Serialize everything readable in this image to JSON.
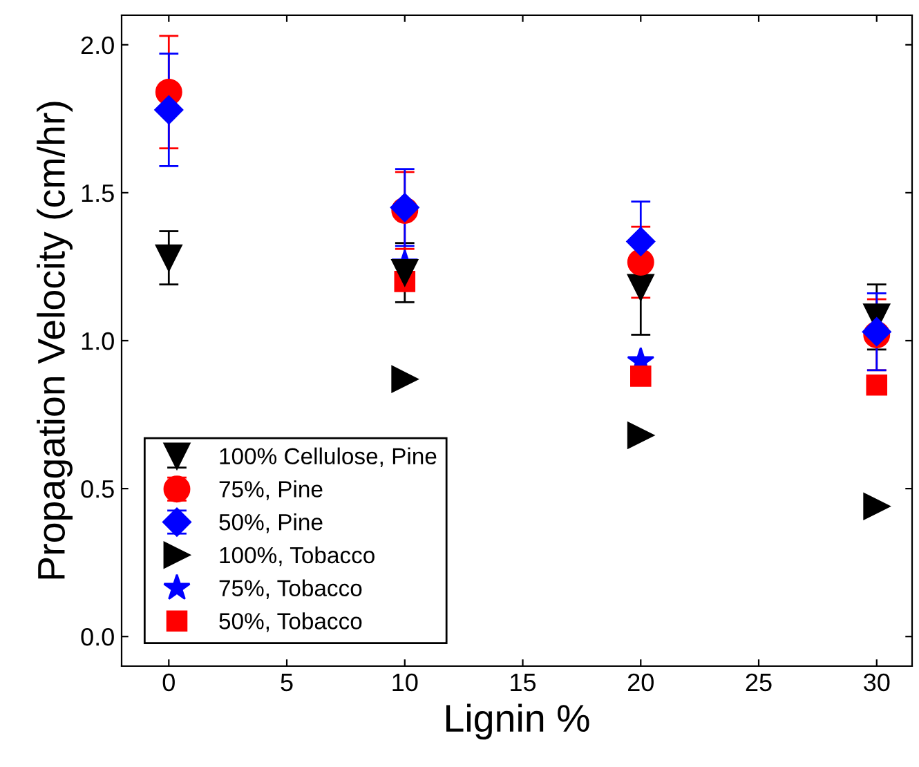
{
  "chart_data": {
    "type": "scatter",
    "xlabel": "Lignin %",
    "ylabel": "Propagation Velocity (cm/hr)",
    "x": [
      0,
      10,
      20,
      30
    ],
    "xlim": [
      -2,
      31.5
    ],
    "ylim": [
      -0.1,
      2.1
    ],
    "xticks": [
      0,
      5,
      10,
      15,
      20,
      25,
      30
    ],
    "yticks": [
      {
        "value": 0,
        "label": "0.0"
      },
      {
        "value": 0.5,
        "label": "0.5"
      },
      {
        "value": 1,
        "label": "1.0"
      },
      {
        "value": 1.5,
        "label": "1.5"
      },
      {
        "value": 2,
        "label": "2.0"
      }
    ],
    "grid": false,
    "legend": "bottom left",
    "series": [
      {
        "name": "100% Cellulose, Pine",
        "color": "#000000",
        "marker": "triangle_down",
        "values": [
          1.28,
          1.23,
          1.18,
          1.08
        ],
        "errors": [
          0.09,
          0.1,
          0.16,
          0.11
        ]
      },
      {
        "name": "75%, Pine",
        "color": "#ff0000",
        "marker": "circle",
        "values": [
          1.84,
          1.44,
          1.265,
          1.02
        ],
        "errors": [
          0.19,
          0.13,
          0.12,
          0.12
        ]
      },
      {
        "name": "50%, Pine",
        "color": "#0000ff",
        "marker": "diamond",
        "values": [
          1.78,
          1.45,
          1.335,
          1.03
        ],
        "errors": [
          0.19,
          0.13,
          0.135,
          0.13
        ]
      },
      {
        "name": "100%, Tobacco",
        "color": "#000000",
        "marker": "triangle_right",
        "values": [
          null,
          0.87,
          0.68,
          0.44
        ]
      },
      {
        "name": "75%, Tobacco",
        "color": "#0000ff",
        "marker": "star",
        "values": [
          null,
          1.26,
          0.93,
          null
        ]
      },
      {
        "name": "50%, Tobacco",
        "color": "#ff0000",
        "marker": "square",
        "values": [
          null,
          1.2,
          0.88,
          0.85
        ]
      }
    ]
  }
}
